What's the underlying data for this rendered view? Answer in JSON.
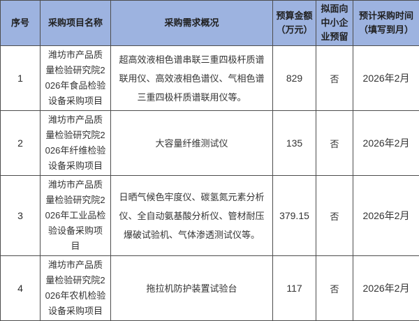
{
  "colors": {
    "header_bg": "#9db3e0",
    "border": "#4d4d4d",
    "body_text": "#333333"
  },
  "table": {
    "headers": {
      "no": "序号",
      "name": "采购项目名称",
      "summary": "采购需求概况",
      "budget": "预算金额（万元）",
      "sme": "拟面向中小企业预留",
      "time": "预计采购时间（填写到月）"
    },
    "rows": [
      {
        "no": "1",
        "name": "潍坊市产品质量检验研究院2026年食品检验设备采购项目",
        "summary": "超高效液相色谱串联三重四极杆质谱联用仪、高效液相色谱仪、气相色谱三重四极杆质谱联用仪等。",
        "budget": "829",
        "sme": "否",
        "time": "2026年2月"
      },
      {
        "no": "2",
        "name": "潍坊市产品质量检验研究院2026年纤维检验设备采购项目",
        "summary": "大容量纤维测试仪",
        "budget": "135",
        "sme": "否",
        "time": "2026年2月"
      },
      {
        "no": "3",
        "name": "潍坊市产品质量检验研究院2026年工业品检验设备采购项目",
        "summary": "日晒气候色牢度仪、碳氢氮元素分析仪、全自动氨基酸分析仪、管材耐压爆破试验机、气体渗透测试仪等。",
        "budget": "379.15",
        "sme": "否",
        "time": "2026年2月"
      },
      {
        "no": "4",
        "name": "潍坊市产品质量检验研究院2026年农机检验设备采购项目",
        "summary": "拖拉机防护装置试验台",
        "budget": "117",
        "sme": "否",
        "time": "2026年2月"
      }
    ]
  }
}
